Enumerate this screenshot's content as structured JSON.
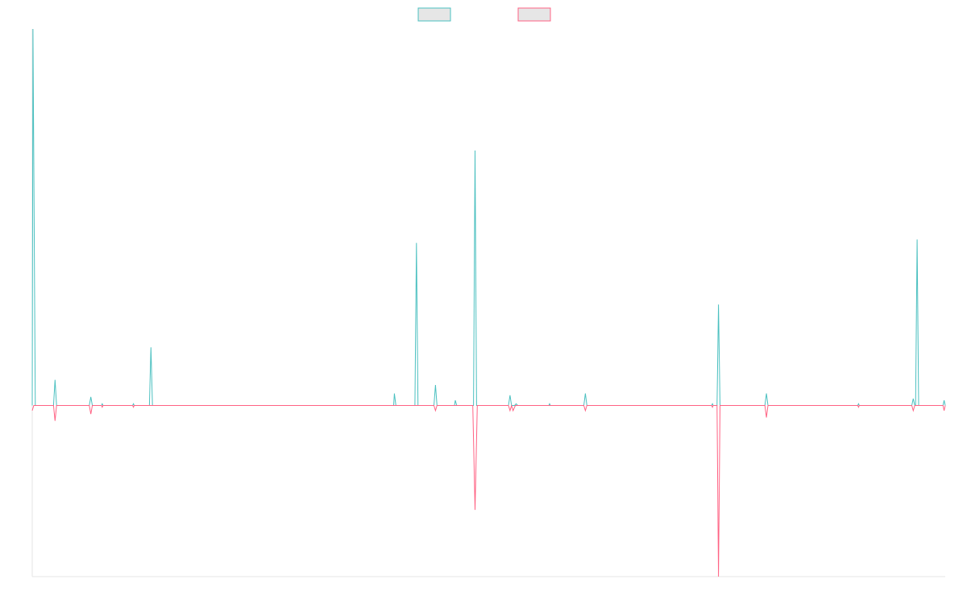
{
  "chart_data": {
    "type": "line",
    "title": "",
    "xlabel": "",
    "ylabel": "",
    "x_range": [
      0,
      120
    ],
    "ylim": [
      -100,
      220
    ],
    "grid": false,
    "legend": {
      "placement": "top-center",
      "entries": [
        "",
        ""
      ]
    },
    "series": [
      {
        "color": "#4bc0c0",
        "fill": "#e6e6e6",
        "points": [
          [
            0,
            0
          ],
          [
            0.1,
            220
          ],
          [
            0.4,
            0
          ],
          [
            2.8,
            0
          ],
          [
            3,
            15
          ],
          [
            3.2,
            0
          ],
          [
            7.5,
            0
          ],
          [
            7.7,
            5
          ],
          [
            7.9,
            0
          ],
          [
            9.1,
            0
          ],
          [
            9.2,
            1
          ],
          [
            9.3,
            0
          ],
          [
            13.2,
            0
          ],
          [
            13.3,
            1
          ],
          [
            13.4,
            0
          ],
          [
            15.4,
            0
          ],
          [
            15.6,
            34
          ],
          [
            15.8,
            0
          ],
          [
            47.5,
            0
          ],
          [
            47.6,
            7
          ],
          [
            47.8,
            0
          ],
          [
            50.3,
            0
          ],
          [
            50.5,
            95
          ],
          [
            50.7,
            0
          ],
          [
            52.8,
            0
          ],
          [
            53,
            12
          ],
          [
            53.2,
            0
          ],
          [
            55.5,
            0
          ],
          [
            55.6,
            3
          ],
          [
            55.8,
            0
          ],
          [
            58,
            0
          ],
          [
            58.2,
            149
          ],
          [
            58.4,
            0
          ],
          [
            62.6,
            0
          ],
          [
            62.8,
            6
          ],
          [
            63,
            0
          ],
          [
            63.4,
            0
          ],
          [
            63.6,
            1
          ],
          [
            63.8,
            0
          ],
          [
            67.9,
            0
          ],
          [
            68,
            1
          ],
          [
            68.1,
            0
          ],
          [
            72.5,
            0
          ],
          [
            72.7,
            7
          ],
          [
            72.9,
            0
          ],
          [
            89.3,
            0
          ],
          [
            89.4,
            1
          ],
          [
            89.5,
            0
          ],
          [
            90,
            0
          ],
          [
            90.2,
            59
          ],
          [
            90.4,
            0
          ],
          [
            96.3,
            0
          ],
          [
            96.5,
            7
          ],
          [
            96.7,
            0
          ],
          [
            108.5,
            0
          ],
          [
            108.6,
            1
          ],
          [
            108.7,
            0
          ],
          [
            115.6,
            0
          ],
          [
            115.8,
            4
          ],
          [
            116,
            0
          ],
          [
            116.1,
            0
          ],
          [
            116.3,
            97
          ],
          [
            116.5,
            0
          ],
          [
            119.7,
            0
          ],
          [
            119.85,
            3
          ],
          [
            120,
            0
          ]
        ]
      },
      {
        "color": "#ff6384",
        "fill": "#e6e6e6",
        "points": [
          [
            0,
            -3
          ],
          [
            0.2,
            0
          ],
          [
            2.8,
            0
          ],
          [
            3,
            -9
          ],
          [
            3.2,
            0
          ],
          [
            7.5,
            0
          ],
          [
            7.7,
            -5
          ],
          [
            7.9,
            0
          ],
          [
            9.1,
            0
          ],
          [
            9.2,
            -1
          ],
          [
            9.3,
            0
          ],
          [
            13.2,
            0
          ],
          [
            13.3,
            -1
          ],
          [
            13.4,
            0
          ],
          [
            52.8,
            0
          ],
          [
            53,
            -3
          ],
          [
            53.2,
            0
          ],
          [
            57.9,
            0
          ],
          [
            58.2,
            -61
          ],
          [
            58.5,
            0
          ],
          [
            62.6,
            0
          ],
          [
            62.8,
            -3
          ],
          [
            63,
            0
          ],
          [
            63.2,
            -3
          ],
          [
            63.5,
            0
          ],
          [
            72.5,
            0
          ],
          [
            72.7,
            -3
          ],
          [
            72.9,
            0
          ],
          [
            89.3,
            0
          ],
          [
            89.4,
            -1
          ],
          [
            89.5,
            0
          ],
          [
            90,
            0
          ],
          [
            90.2,
            -100
          ],
          [
            90.4,
            0
          ],
          [
            96.3,
            0
          ],
          [
            96.5,
            -7
          ],
          [
            96.7,
            0
          ],
          [
            108.5,
            0
          ],
          [
            108.6,
            -1
          ],
          [
            108.7,
            0
          ],
          [
            115.6,
            0
          ],
          [
            115.8,
            -3
          ],
          [
            116,
            0
          ],
          [
            119.7,
            0
          ],
          [
            119.85,
            -3
          ],
          [
            120,
            0
          ]
        ]
      }
    ]
  }
}
